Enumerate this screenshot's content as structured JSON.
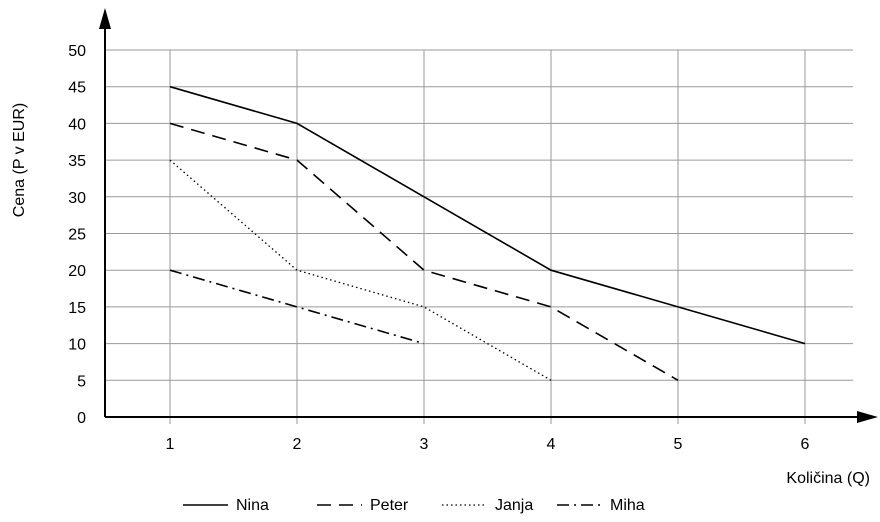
{
  "chart_data": {
    "type": "line",
    "title": "",
    "xlabel": "Količina (Q)",
    "ylabel": "Cena (P v EUR)",
    "x_ticks": [
      "1",
      "2",
      "3",
      "4",
      "5",
      "6"
    ],
    "y_ticks": [
      "0",
      "5",
      "10",
      "15",
      "20",
      "25",
      "30",
      "35",
      "40",
      "45",
      "50"
    ],
    "xlim": [
      0.5,
      6.5
    ],
    "ylim": [
      0,
      50
    ],
    "grid": true,
    "legend_position": "bottom",
    "series": [
      {
        "name": "Nina",
        "style": "solid",
        "x": [
          1,
          2,
          3,
          4,
          5,
          6
        ],
        "y": [
          45,
          40,
          30,
          20,
          15,
          10
        ]
      },
      {
        "name": "Peter",
        "style": "dashed",
        "x": [
          1,
          2,
          3,
          4,
          5
        ],
        "y": [
          40,
          35,
          20,
          15,
          5
        ]
      },
      {
        "name": "Janja",
        "style": "dotted",
        "x": [
          1,
          2,
          3,
          4
        ],
        "y": [
          35,
          20,
          15,
          5
        ]
      },
      {
        "name": "Miha",
        "style": "dash-dot",
        "x": [
          1,
          2,
          3
        ],
        "y": [
          20,
          15,
          10
        ]
      }
    ],
    "colors": {
      "line": "#000000",
      "grid": "#9a9a9a"
    }
  }
}
